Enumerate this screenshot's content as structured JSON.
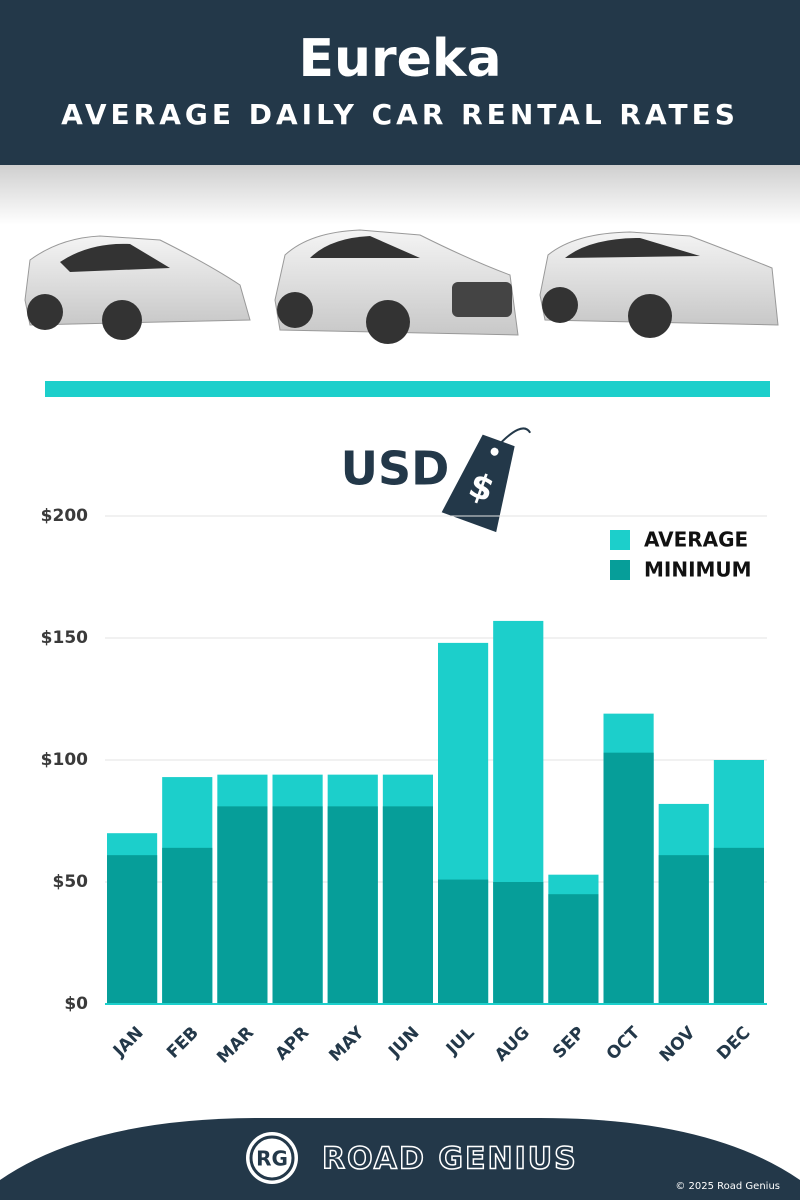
{
  "chart_data": {
    "type": "bar",
    "title": "Eureka",
    "subtitle": "AVERAGE DAILY CAR RENTAL RATES",
    "unit_label": "USD",
    "tag_symbol": "$",
    "categories": [
      "JAN",
      "FEB",
      "MAR",
      "APR",
      "MAY",
      "JUN",
      "JUL",
      "AUG",
      "SEP",
      "OCT",
      "NOV",
      "DEC"
    ],
    "series": [
      {
        "name": "AVERAGE",
        "color": "#1ccfcb",
        "values": [
          70,
          93,
          94,
          94,
          94,
          94,
          148,
          157,
          53,
          119,
          82,
          100
        ]
      },
      {
        "name": "MINIMUM",
        "color": "#069e99",
        "values": [
          61,
          64,
          81,
          81,
          81,
          81,
          51,
          50,
          45,
          103,
          61,
          64
        ]
      }
    ],
    "ylim": [
      0,
      200
    ],
    "yticks": [
      {
        "value": 0,
        "label": "$0"
      },
      {
        "value": 50,
        "label": "$50"
      },
      {
        "value": 100,
        "label": "$100"
      },
      {
        "value": 150,
        "label": "$150"
      },
      {
        "value": 200,
        "label": "$200"
      }
    ],
    "grid": true,
    "legend": "top-right"
  },
  "footer": {
    "logo": "RG",
    "brand": "ROAD GENIUS",
    "copyright": "© 2025 Road Genius"
  }
}
